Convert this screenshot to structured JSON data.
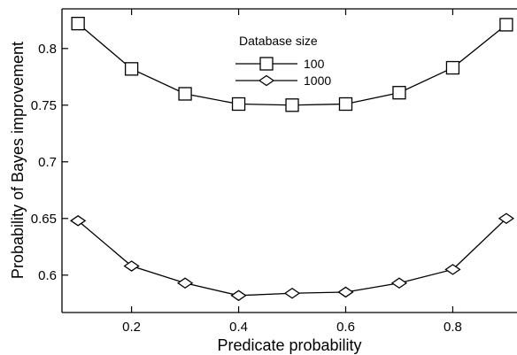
{
  "chart_data": {
    "type": "line",
    "title": "",
    "xlabel": "Predicate probability",
    "ylabel": "Probability of Bayes improvement",
    "xlim": [
      0.07,
      0.92
    ],
    "ylim": [
      0.567,
      0.835
    ],
    "xticks": [
      "0.2",
      "0.4",
      "0.6",
      "0.8"
    ],
    "yticks": [
      "0.6",
      "0.65",
      "0.7",
      "0.75",
      "0.8"
    ],
    "grid": false,
    "legend_title": "Database size",
    "legend_position": "top-center",
    "x": [
      0.1,
      0.2,
      0.3,
      0.4,
      0.5,
      0.6,
      0.7,
      0.8,
      0.9
    ],
    "series": [
      {
        "name": "100",
        "marker": "square",
        "values": [
          0.822,
          0.782,
          0.76,
          0.751,
          0.75,
          0.751,
          0.761,
          0.783,
          0.821
        ]
      },
      {
        "name": "1000",
        "marker": "diamond",
        "values": [
          0.648,
          0.608,
          0.593,
          0.582,
          0.584,
          0.585,
          0.593,
          0.605,
          0.65
        ]
      }
    ],
    "colors": {
      "line": "#000000",
      "marker_fill": "#ffffff"
    }
  }
}
